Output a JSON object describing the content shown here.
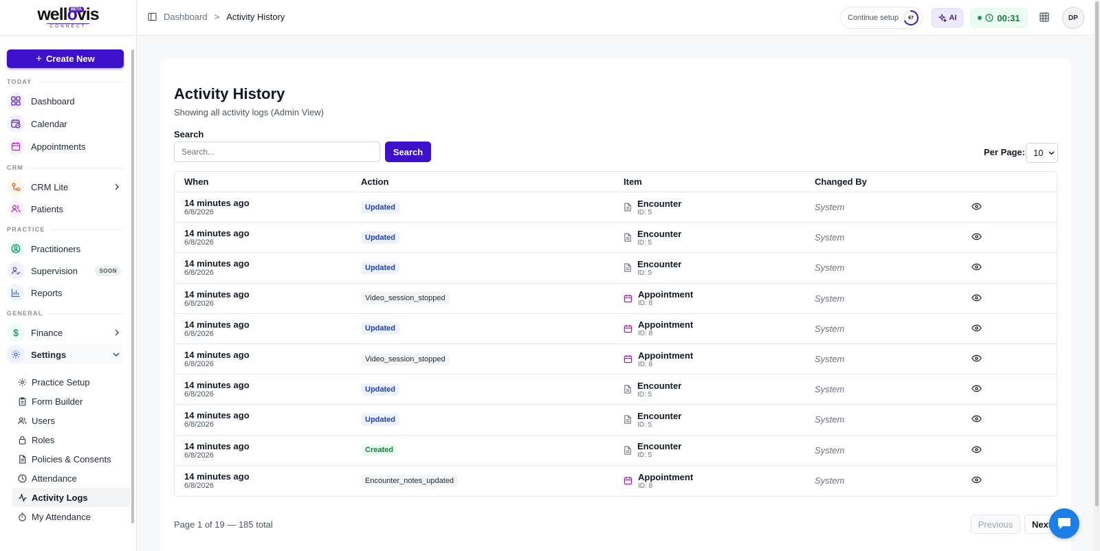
{
  "brand": {
    "name_a": "well",
    "name_b": "vis",
    "connector": "o",
    "sub": "CONNECT",
    "badge": "BETA"
  },
  "sidebar": {
    "create_label": "Create New",
    "sections": {
      "today": "TODAY",
      "crm": "CRM",
      "practice": "PRACTICE",
      "general": "GENERAL"
    },
    "items": {
      "dashboard": "Dashboard",
      "calendar": "Calendar",
      "appointments": "Appointments",
      "crm_lite": "CRM Lite",
      "patients": "Patients",
      "practitioners": "Practitioners",
      "supervision": "Supervision",
      "supervision_badge": "SOON",
      "reports": "Reports",
      "finance": "Finance",
      "settings": "Settings"
    },
    "settings_sub": {
      "practice_setup": "Practice Setup",
      "form_builder": "Form Builder",
      "users": "Users",
      "roles": "Roles",
      "policies": "Policies & Consents",
      "attendance": "Attendance",
      "activity_logs": "Activity Logs",
      "my_attendance": "My Attendance"
    }
  },
  "topbar": {
    "breadcrumb_home": "Dashboard",
    "breadcrumb_sep": ">",
    "breadcrumb_current": "Activity History",
    "continue_setup": "Continue setup",
    "setup_progress": 67,
    "setup_progress_label": "67",
    "ai_label": "AI",
    "timer": "00:31",
    "avatar_initials": "DP"
  },
  "page": {
    "title": "Activity History",
    "subtitle": "Showing all activity logs (Admin View)",
    "search_label": "Search",
    "search_placeholder": "Search...",
    "search_button": "Search",
    "per_page_label": "Per Page:",
    "per_page_value": "10"
  },
  "table": {
    "headers": {
      "when": "When",
      "action": "Action",
      "item": "Item",
      "changed_by": "Changed By"
    },
    "rows": [
      {
        "when": "14 minutes ago",
        "date": "6/8/2026",
        "action": "Updated",
        "action_type": "updated",
        "item": "Encounter",
        "item_id": "ID: 5",
        "item_icon": "document-icon",
        "changed_by": "System"
      },
      {
        "when": "14 minutes ago",
        "date": "6/8/2026",
        "action": "Updated",
        "action_type": "updated",
        "item": "Encounter",
        "item_id": "ID: 5",
        "item_icon": "document-icon",
        "changed_by": "System"
      },
      {
        "when": "14 minutes ago",
        "date": "6/8/2026",
        "action": "Updated",
        "action_type": "updated",
        "item": "Encounter",
        "item_id": "ID: 5",
        "item_icon": "document-icon",
        "changed_by": "System"
      },
      {
        "when": "14 minutes ago",
        "date": "6/8/2026",
        "action": "Video_session_stopped",
        "action_type": "other",
        "item": "Appointment",
        "item_id": "ID: 8",
        "item_icon": "calendar-icon",
        "changed_by": "System"
      },
      {
        "when": "14 minutes ago",
        "date": "6/8/2026",
        "action": "Updated",
        "action_type": "updated",
        "item": "Appointment",
        "item_id": "ID: 8",
        "item_icon": "calendar-icon",
        "changed_by": "System"
      },
      {
        "when": "14 minutes ago",
        "date": "6/8/2026",
        "action": "Video_session_stopped",
        "action_type": "other",
        "item": "Appointment",
        "item_id": "ID: 8",
        "item_icon": "calendar-icon",
        "changed_by": "System"
      },
      {
        "when": "14 minutes ago",
        "date": "6/8/2026",
        "action": "Updated",
        "action_type": "updated",
        "item": "Encounter",
        "item_id": "ID: 5",
        "item_icon": "document-icon",
        "changed_by": "System"
      },
      {
        "when": "14 minutes ago",
        "date": "6/8/2026",
        "action": "Updated",
        "action_type": "updated",
        "item": "Encounter",
        "item_id": "ID: 5",
        "item_icon": "document-icon",
        "changed_by": "System"
      },
      {
        "when": "14 minutes ago",
        "date": "6/8/2026",
        "action": "Created",
        "action_type": "created",
        "item": "Encounter",
        "item_id": "ID: 5",
        "item_icon": "document-icon",
        "changed_by": "System"
      },
      {
        "when": "14 minutes ago",
        "date": "6/8/2026",
        "action": "Encounter_notes_updated",
        "action_type": "other",
        "item": "Appointment",
        "item_id": "ID: 8",
        "item_icon": "calendar-icon",
        "changed_by": "System"
      }
    ]
  },
  "pagination": {
    "summary": "Page 1 of 19 — 185 total",
    "previous": "Previous",
    "next": "Next"
  },
  "colors": {
    "accent": "#3d10c9",
    "updated_badge": "#1e40af",
    "created_badge": "#15803d",
    "timer_green": "#16803c"
  }
}
